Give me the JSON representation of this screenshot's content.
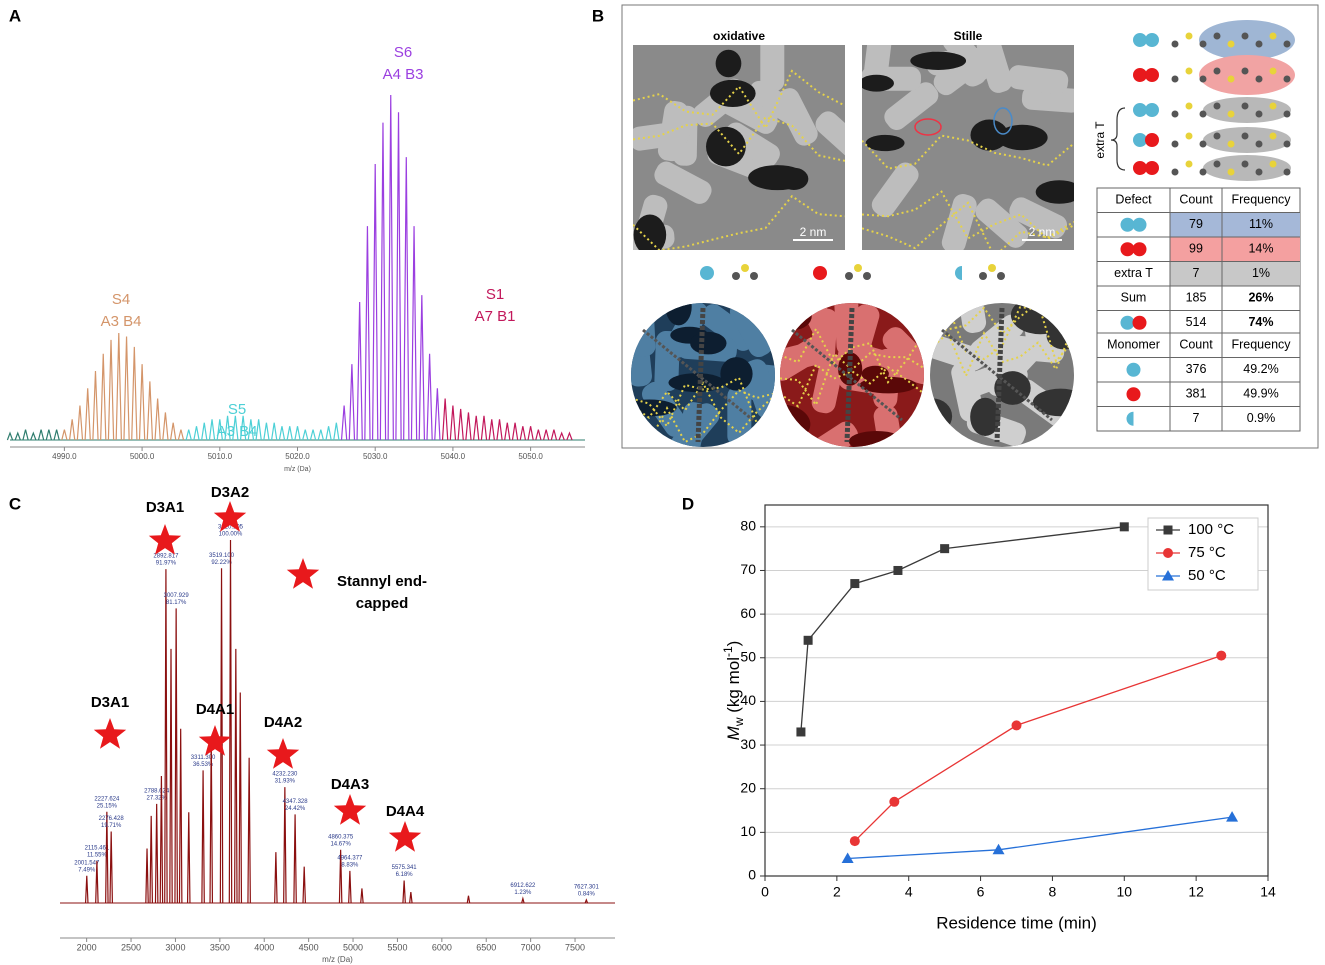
{
  "panel_labels": [
    "A",
    "B",
    "C",
    "D"
  ],
  "chart_data": [
    {
      "type": "spectrum",
      "xlabel": "m/z (Da)",
      "xlim": [
        4983,
        5057
      ],
      "ylim": [
        0,
        100
      ],
      "xticks": [
        {
          "value": 4990,
          "label": "4990.0"
        },
        {
          "value": 5000,
          "label": "5000.0"
        },
        {
          "value": 5010,
          "label": "5010.0"
        },
        {
          "value": 5020,
          "label": "5020.0"
        },
        {
          "value": 5030,
          "label": "5030.0"
        },
        {
          "value": 5040,
          "label": "5040.0"
        },
        {
          "value": 5050,
          "label": "5050.0"
        }
      ],
      "series": [
        {
          "color": "#2e7d6e",
          "x": [
            4983,
            4984,
            4985,
            4986,
            4987,
            4988,
            4989
          ],
          "values": [
            2,
            2,
            3,
            2,
            3,
            3,
            3
          ]
        },
        {
          "name": "S4",
          "sublabel": "A3 B4",
          "color": "#d4956a",
          "x": [
            4990,
            4991,
            4992,
            4993,
            4994,
            4995,
            4996,
            4997,
            4998,
            4999,
            5000,
            5001,
            5002,
            5003,
            5004,
            5005
          ],
          "values": [
            3,
            6,
            10,
            15,
            20,
            25,
            29,
            31,
            30,
            27,
            22,
            17,
            12,
            8,
            5,
            3
          ]
        },
        {
          "name": "S5",
          "sublabel": "A3 B4",
          "color": "#4dd0d6",
          "x": [
            5006,
            5007,
            5008,
            5009,
            5010,
            5011,
            5012,
            5013,
            5014,
            5015,
            5016,
            5017,
            5018,
            5019,
            5020,
            5021,
            5022,
            5023,
            5024,
            5025
          ],
          "values": [
            3,
            4,
            5,
            6,
            6,
            7,
            7,
            7,
            6,
            6,
            5,
            5,
            4,
            4,
            4,
            3,
            3,
            3,
            4,
            5
          ]
        },
        {
          "name": "S6",
          "sublabel": "A4 B3",
          "color": "#9b3fe0",
          "x": [
            5026,
            5027,
            5028,
            5029,
            5030,
            5031,
            5032,
            5033,
            5034,
            5035,
            5036,
            5037,
            5038
          ],
          "values": [
            10,
            22,
            40,
            62,
            80,
            92,
            100,
            95,
            82,
            62,
            42,
            25,
            15
          ]
        },
        {
          "name": "S1",
          "sublabel": "A7 B1",
          "color": "#c2185b",
          "x": [
            5039,
            5040,
            5041,
            5042,
            5043,
            5044,
            5045,
            5046,
            5047,
            5048,
            5049,
            5050,
            5051,
            5052,
            5053,
            5054,
            5055
          ],
          "values": [
            12,
            10,
            9,
            8,
            7,
            7,
            6,
            6,
            5,
            5,
            4,
            4,
            3,
            3,
            3,
            2,
            2
          ]
        }
      ]
    },
    {
      "type": "spectrum",
      "xlabel": "m/z (Da)",
      "xlim": [
        1700,
        7950
      ],
      "ylim": [
        0,
        100
      ],
      "xticks": [
        2000,
        2500,
        3000,
        3500,
        4000,
        4500,
        5000,
        5500,
        6000,
        6500,
        7000,
        7500
      ],
      "series": [
        {
          "color": "#8b1010",
          "x": [
            2001.547,
            2115.461,
            2227.624,
            2276.428,
            2680,
            2727,
            2788.624,
            2842,
            2892.817,
            2950,
            3007.929,
            3059,
            3150,
            3311.3,
            3403,
            3519.1,
            3620.105,
            3680,
            3730,
            3830,
            4131,
            4232.23,
            4347.328,
            4450,
            4860.375,
            4964.377,
            5100,
            5575.341,
            5651,
            6300,
            6912.622,
            7627.301
          ],
          "values": [
            7.49,
            11.55,
            25.15,
            19.71,
            15,
            24,
            27.32,
            35,
            91.97,
            70,
            81.17,
            48,
            25,
            36.53,
            46,
            92.22,
            100,
            70,
            58,
            40,
            14,
            31.93,
            24.42,
            10,
            14.67,
            8.83,
            4,
            6.18,
            3,
            2,
            1.23,
            0.84
          ],
          "value_labels": [
            [
              "2001.547",
              "7.49%"
            ],
            [
              "2115.461",
              "11.55%"
            ],
            [
              "2227.624",
              "25.15%"
            ],
            [
              "2276.428",
              "19.71%"
            ],
            null,
            null,
            [
              "2788.624",
              "27.32%"
            ],
            null,
            [
              "2892.817",
              "91.97%"
            ],
            null,
            [
              "3007.929",
              "81.17%"
            ],
            null,
            null,
            [
              "3311.300",
              "36.53%"
            ],
            null,
            [
              "3519.100",
              "92.22%"
            ],
            [
              "3620.105",
              "100.00%"
            ],
            null,
            null,
            null,
            null,
            [
              "4232.230",
              "31.93%"
            ],
            [
              "4347.328",
              "24.42%"
            ],
            null,
            [
              "4860.375",
              "14.67%"
            ],
            [
              "4964.377",
              "8.83%"
            ],
            null,
            [
              "5575.341",
              "6.18%"
            ],
            null,
            null,
            [
              "6912.622",
              "1.23%"
            ],
            [
              "7627.301",
              "0.84%"
            ]
          ]
        }
      ],
      "annotations": [
        "D3A1",
        "D3A2",
        "D3A1",
        "D4A1",
        "D4A2",
        "D4A3",
        "D4A4"
      ],
      "legend": {
        "label": [
          "Stannyl end-",
          "capped"
        ],
        "color": "#e8191c"
      }
    },
    {
      "type": "line",
      "xlabel": "Residence time (min)",
      "ylabel": [
        "M",
        "w",
        " (kg mol",
        "-1",
        ")"
      ],
      "xlim": [
        0,
        14
      ],
      "ylim": [
        0,
        85
      ],
      "xticks": [
        0,
        2,
        4,
        6,
        8,
        10,
        12,
        14
      ],
      "yticks": [
        0,
        10,
        20,
        30,
        40,
        50,
        60,
        70,
        80
      ],
      "grid": "y",
      "legend": "upper right",
      "series": [
        {
          "name": "100 °C",
          "color": "#3a3a3a",
          "marker": "square",
          "x": [
            1,
            1.2,
            2.5,
            3.7,
            5,
            10
          ],
          "values": [
            33,
            54,
            67,
            70,
            75,
            80
          ]
        },
        {
          "name": "75 °C",
          "color": "#e83535",
          "marker": "circle",
          "x": [
            2.5,
            3.6,
            7,
            12.7
          ],
          "values": [
            8,
            17,
            34.5,
            50.5
          ]
        },
        {
          "name": "50 °C",
          "color": "#2670d8",
          "marker": "triangle",
          "x": [
            2.3,
            6.5,
            13
          ],
          "values": [
            4,
            6,
            13.5
          ]
        }
      ]
    }
  ],
  "panel_b": {
    "images": [
      {
        "title": "oxidative",
        "scale": "2 nm"
      },
      {
        "title": "Stille",
        "scale": "2 nm"
      }
    ],
    "bracket_label": "extra T",
    "defect_table": {
      "header": [
        "Defect",
        "Count",
        "Frequency"
      ],
      "rows": [
        {
          "count": 79,
          "frequency": "11%"
        },
        {
          "count": 99,
          "frequency": "14%"
        },
        {
          "defect": "extra T",
          "count": 7,
          "frequency": "1%"
        },
        {
          "defect": "Sum",
          "count": 185,
          "frequency": "26%"
        },
        {
          "count": 514,
          "frequency": "74%"
        }
      ]
    },
    "monomer_table": {
      "header": [
        "Monomer",
        "Count",
        "Frequency"
      ],
      "rows": [
        {
          "count": 376,
          "frequency": "49.2%"
        },
        {
          "count": 381,
          "frequency": "49.9%"
        },
        {
          "count": 7,
          "frequency": "0.9%"
        }
      ]
    }
  }
}
